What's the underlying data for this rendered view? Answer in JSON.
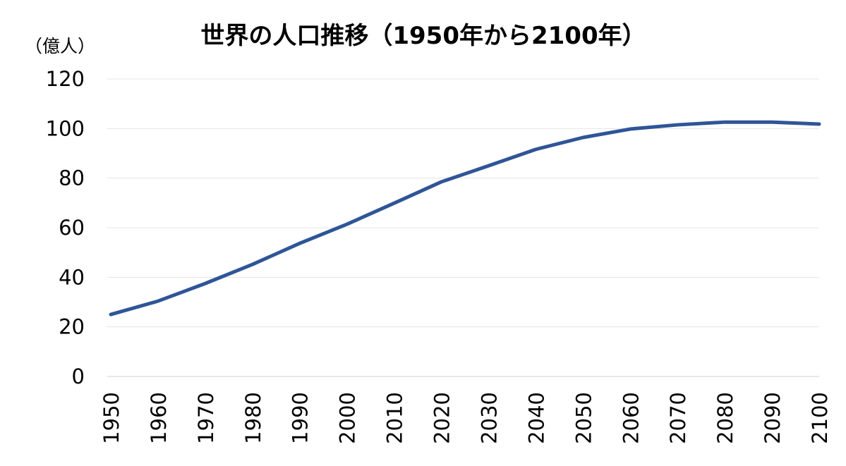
{
  "chart_data": {
    "type": "line",
    "title": "世界の人口推移（1950年から2100年）",
    "y_label": "（億人）",
    "x": [
      1950,
      1960,
      1970,
      1980,
      1990,
      2000,
      2010,
      2020,
      2030,
      2040,
      2050,
      2060,
      2070,
      2080,
      2090,
      2100
    ],
    "series": [
      {
        "color": "#2f5597",
        "values": [
          25.0,
          30.4,
          37.5,
          45.2,
          53.7,
          61.4,
          69.9,
          78.5,
          85.0,
          91.6,
          96.4,
          99.8,
          101.5,
          102.6,
          102.6,
          101.8
        ]
      }
    ],
    "xlim": [
      1950,
      2100
    ],
    "xticks": [
      1950,
      1960,
      1970,
      1980,
      1990,
      2000,
      2010,
      2020,
      2030,
      2040,
      2050,
      2060,
      2070,
      2080,
      2090,
      2100
    ],
    "ylim": [
      0,
      120
    ],
    "yticks": [
      0,
      20,
      40,
      60,
      80,
      100,
      120
    ],
    "grid": true
  }
}
